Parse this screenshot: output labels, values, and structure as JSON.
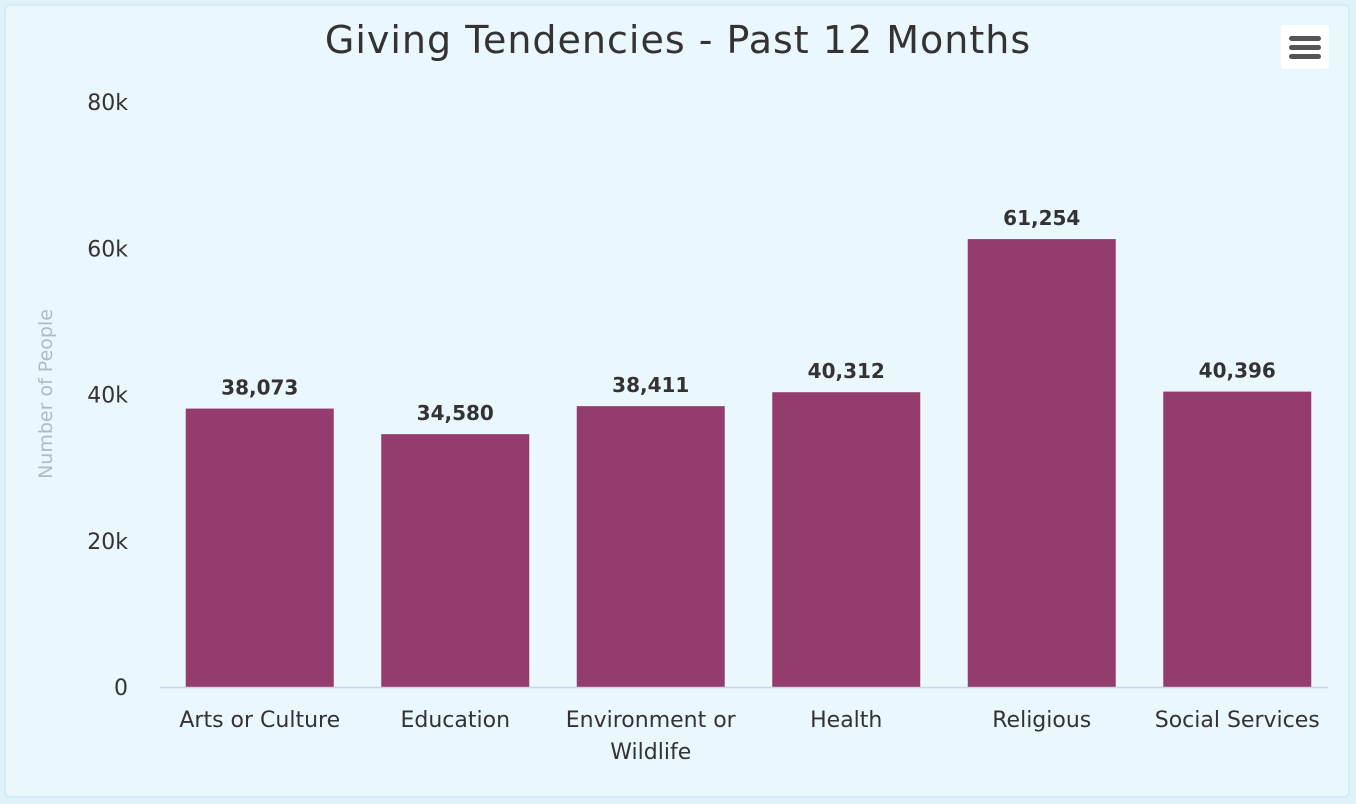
{
  "title": "Giving Tendencies - Past 12 Months",
  "menu_icon": "hamburger-icon",
  "colors": {
    "bar": "#943c6d",
    "background": "#eaf7fd",
    "axis": "#c9d6e3"
  },
  "chart_data": {
    "type": "bar",
    "title": "Giving Tendencies - Past 12 Months",
    "xlabel": "",
    "ylabel": "Number of People",
    "categories": [
      [
        "Arts or Culture"
      ],
      [
        "Education"
      ],
      [
        "Environment or",
        "Wildlife"
      ],
      [
        "Health"
      ],
      [
        "Religious"
      ],
      [
        "Social Services"
      ]
    ],
    "values": [
      38073,
      34580,
      38411,
      40312,
      61254,
      40396
    ],
    "data_labels": [
      "38,073",
      "34,580",
      "38,411",
      "40,312",
      "61,254",
      "40,396"
    ],
    "ylim": [
      0,
      80000
    ],
    "yticks": [
      0,
      20000,
      40000,
      60000,
      80000
    ],
    "ytick_labels": [
      "0",
      "20k",
      "40k",
      "60k",
      "80k"
    ],
    "grid": false,
    "legend": false
  }
}
